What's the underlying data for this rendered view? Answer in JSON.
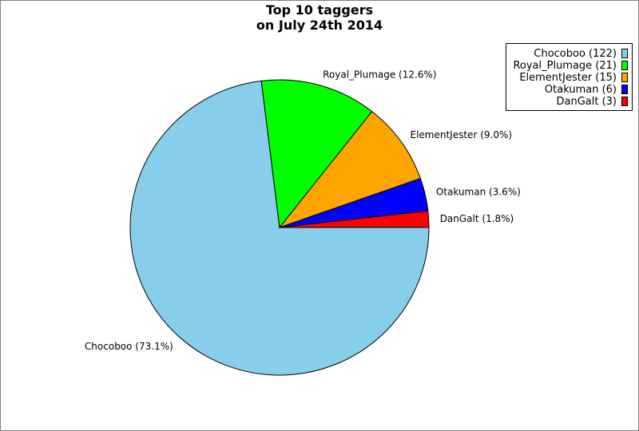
{
  "chart_data": {
    "type": "pie",
    "title": [
      "Top 10 taggers",
      "on July 24th 2014"
    ],
    "slices": [
      {
        "name": "Chocoboo",
        "value": 122,
        "percent_label": "Chocoboo (73.1%)",
        "legend_label": "Chocoboo (122)",
        "color": "#87CEEB"
      },
      {
        "name": "Royal_Plumage",
        "value": 21,
        "percent_label": "Royal_Plumage (12.6%)",
        "legend_label": "Royal_Plumage (21)",
        "color": "#00FF00"
      },
      {
        "name": "ElementJester",
        "value": 15,
        "percent_label": "ElementJester (9.0%)",
        "legend_label": "ElementJester (15)",
        "color": "#FFA500"
      },
      {
        "name": "Otakuman",
        "value": 6,
        "percent_label": "Otakuman (3.6%)",
        "legend_label": "Otakuman (6)",
        "color": "#0000FF"
      },
      {
        "name": "DanGalt",
        "value": 3,
        "percent_label": "DanGalt (1.8%)",
        "legend_label": "DanGalt (3)",
        "color": "#FF0000"
      }
    ],
    "start_angle_deg": 0,
    "direction": "clockwise",
    "legend_position": "top-right"
  }
}
